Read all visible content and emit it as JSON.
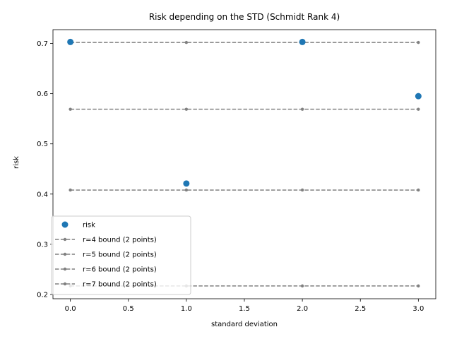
{
  "chart_data": {
    "type": "scatter",
    "title": "Risk depending on the STD (Schmidt Rank 4)",
    "xlabel": "standard deviation",
    "ylabel": "risk",
    "xlim": [
      -0.15,
      3.15
    ],
    "ylim": [
      0.1915,
      0.7275
    ],
    "xticks": [
      0.0,
      0.5,
      1.0,
      1.5,
      2.0,
      2.5,
      3.0
    ],
    "xtick_labels": [
      "0.0",
      "0.5",
      "1.0",
      "1.5",
      "2.0",
      "2.5",
      "3.0"
    ],
    "yticks": [
      0.2,
      0.3,
      0.4,
      0.5,
      0.6,
      0.7
    ],
    "ytick_labels": [
      "0.2",
      "0.3",
      "0.4",
      "0.5",
      "0.6",
      "0.7"
    ],
    "grid": false,
    "legend_position": "lower-left",
    "scatter": {
      "name": "risk",
      "color": "#1f77b4",
      "x": [
        0,
        1,
        2,
        3
      ],
      "y": [
        0.703,
        0.421,
        0.703,
        0.595
      ]
    },
    "bounds": [
      {
        "name": "r=4 bound (2 points)",
        "color": "#808080",
        "x": [
          0,
          1,
          2,
          3
        ],
        "y": [
          0.702,
          0.702,
          0.702,
          0.702
        ]
      },
      {
        "name": "r=5 bound (2 points)",
        "color": "#808080",
        "x": [
          0,
          1,
          2,
          3
        ],
        "y": [
          0.569,
          0.569,
          0.569,
          0.569
        ]
      },
      {
        "name": "r=6 bound (2 points)",
        "color": "#808080",
        "x": [
          0,
          1,
          2,
          3
        ],
        "y": [
          0.408,
          0.408,
          0.408,
          0.408
        ]
      },
      {
        "name": "r=7 bound (2 points)",
        "color": "#808080",
        "x": [
          0,
          1,
          2,
          3
        ],
        "y": [
          0.217,
          0.217,
          0.217,
          0.217
        ]
      }
    ]
  }
}
